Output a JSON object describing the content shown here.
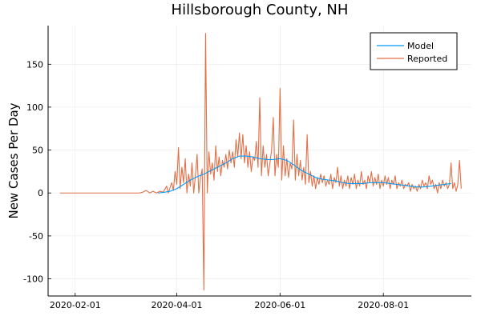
{
  "chart_data": {
    "type": "line",
    "title": "Hillsborough County, NH",
    "xlabel": "",
    "ylabel": "New Cases Per Day",
    "x_axis": "date",
    "x_start": "2020-01-23",
    "x_end": "2020-09-16",
    "xlim": [
      "2020-01-16",
      "2020-09-22"
    ],
    "ylim": [
      -120,
      195
    ],
    "xticks": [
      "2020-02-01",
      "2020-04-01",
      "2020-06-01",
      "2020-08-01"
    ],
    "yticks": [
      150,
      100,
      50,
      0,
      -50,
      -100
    ],
    "ytick_labels": [
      "150",
      "100",
      "50",
      "0",
      "-50",
      "-100"
    ],
    "grid": true,
    "legend": {
      "position": "top-right",
      "entries": [
        "Model",
        "Reported"
      ]
    },
    "series": [
      {
        "name": "Model",
        "color": "#009AFA",
        "points": [
          [
            "2020-03-21",
            0
          ],
          [
            "2020-03-25",
            1
          ],
          [
            "2020-03-28",
            2
          ],
          [
            "2020-04-01",
            5
          ],
          [
            "2020-04-05",
            10
          ],
          [
            "2020-04-09",
            15
          ],
          [
            "2020-04-13",
            19
          ],
          [
            "2020-04-17",
            22
          ],
          [
            "2020-04-22",
            27
          ],
          [
            "2020-04-26",
            31
          ],
          [
            "2020-04-30",
            35
          ],
          [
            "2020-05-04",
            40
          ],
          [
            "2020-05-08",
            43
          ],
          [
            "2020-05-12",
            43
          ],
          [
            "2020-05-16",
            42
          ],
          [
            "2020-05-20",
            40
          ],
          [
            "2020-05-24",
            39
          ],
          [
            "2020-05-28",
            39
          ],
          [
            "2020-06-01",
            40
          ],
          [
            "2020-06-05",
            38
          ],
          [
            "2020-06-09",
            33
          ],
          [
            "2020-06-13",
            27
          ],
          [
            "2020-06-18",
            22
          ],
          [
            "2020-06-22",
            18
          ],
          [
            "2020-06-26",
            16
          ],
          [
            "2020-06-30",
            15
          ],
          [
            "2020-07-04",
            14
          ],
          [
            "2020-07-08",
            12
          ],
          [
            "2020-07-12",
            11
          ],
          [
            "2020-07-16",
            11
          ],
          [
            "2020-07-20",
            11
          ],
          [
            "2020-07-24",
            12
          ],
          [
            "2020-07-28",
            12
          ],
          [
            "2020-08-01",
            12
          ],
          [
            "2020-08-05",
            11
          ],
          [
            "2020-08-09",
            10
          ],
          [
            "2020-08-13",
            9
          ],
          [
            "2020-08-17",
            8
          ],
          [
            "2020-08-21",
            7
          ],
          [
            "2020-08-25",
            7
          ],
          [
            "2020-08-29",
            8
          ],
          [
            "2020-09-02",
            9
          ],
          [
            "2020-09-06",
            10
          ],
          [
            "2020-09-10",
            11
          ]
        ]
      },
      {
        "name": "Reported",
        "color": "#E26F46",
        "points": [
          [
            "2020-01-23",
            0
          ],
          [
            "2020-03-10",
            0
          ],
          [
            "2020-03-12",
            1
          ],
          [
            "2020-03-14",
            3
          ],
          [
            "2020-03-16",
            0
          ],
          [
            "2020-03-18",
            2
          ],
          [
            "2020-03-20",
            0
          ],
          [
            "2020-03-22",
            2
          ],
          [
            "2020-03-24",
            1
          ],
          [
            "2020-03-26",
            8
          ],
          [
            "2020-03-27",
            0
          ],
          [
            "2020-03-29",
            12
          ],
          [
            "2020-03-30",
            3
          ],
          [
            "2020-03-31",
            25
          ],
          [
            "2020-04-01",
            10
          ],
          [
            "2020-04-02",
            53
          ],
          [
            "2020-04-03",
            5
          ],
          [
            "2020-04-04",
            30
          ],
          [
            "2020-04-05",
            12
          ],
          [
            "2020-04-06",
            40
          ],
          [
            "2020-04-07",
            0
          ],
          [
            "2020-04-08",
            22
          ],
          [
            "2020-04-09",
            8
          ],
          [
            "2020-04-10",
            35
          ],
          [
            "2020-04-11",
            0
          ],
          [
            "2020-04-12",
            20
          ],
          [
            "2020-04-13",
            45
          ],
          [
            "2020-04-14",
            0
          ],
          [
            "2020-04-15",
            18
          ],
          [
            "2020-04-16",
            28
          ],
          [
            "2020-04-17",
            -113
          ],
          [
            "2020-04-18",
            186
          ],
          [
            "2020-04-19",
            0
          ],
          [
            "2020-04-20",
            48
          ],
          [
            "2020-04-21",
            22
          ],
          [
            "2020-04-22",
            35
          ],
          [
            "2020-04-23",
            15
          ],
          [
            "2020-04-24",
            55
          ],
          [
            "2020-04-25",
            25
          ],
          [
            "2020-04-26",
            42
          ],
          [
            "2020-04-27",
            20
          ],
          [
            "2020-04-28",
            38
          ],
          [
            "2020-04-29",
            30
          ],
          [
            "2020-04-30",
            45
          ],
          [
            "2020-05-01",
            28
          ],
          [
            "2020-05-02",
            50
          ],
          [
            "2020-05-03",
            35
          ],
          [
            "2020-05-04",
            48
          ],
          [
            "2020-05-05",
            30
          ],
          [
            "2020-05-06",
            62
          ],
          [
            "2020-05-07",
            42
          ],
          [
            "2020-05-08",
            70
          ],
          [
            "2020-05-09",
            40
          ],
          [
            "2020-05-10",
            68
          ],
          [
            "2020-05-11",
            35
          ],
          [
            "2020-05-12",
            55
          ],
          [
            "2020-05-13",
            30
          ],
          [
            "2020-05-14",
            48
          ],
          [
            "2020-05-15",
            25
          ],
          [
            "2020-05-16",
            42
          ],
          [
            "2020-05-17",
            38
          ],
          [
            "2020-05-18",
            60
          ],
          [
            "2020-05-19",
            30
          ],
          [
            "2020-05-20",
            111
          ],
          [
            "2020-05-21",
            20
          ],
          [
            "2020-05-22",
            55
          ],
          [
            "2020-05-23",
            30
          ],
          [
            "2020-05-24",
            45
          ],
          [
            "2020-05-25",
            20
          ],
          [
            "2020-05-26",
            35
          ],
          [
            "2020-05-27",
            50
          ],
          [
            "2020-05-28",
            88
          ],
          [
            "2020-05-29",
            20
          ],
          [
            "2020-05-30",
            45
          ],
          [
            "2020-05-31",
            30
          ],
          [
            "2020-06-01",
            122
          ],
          [
            "2020-06-02",
            15
          ],
          [
            "2020-06-03",
            55
          ],
          [
            "2020-06-04",
            20
          ],
          [
            "2020-06-05",
            40
          ],
          [
            "2020-06-06",
            18
          ],
          [
            "2020-06-07",
            35
          ],
          [
            "2020-06-08",
            28
          ],
          [
            "2020-06-09",
            85
          ],
          [
            "2020-06-10",
            15
          ],
          [
            "2020-06-11",
            45
          ],
          [
            "2020-06-12",
            20
          ],
          [
            "2020-06-13",
            38
          ],
          [
            "2020-06-14",
            15
          ],
          [
            "2020-06-15",
            30
          ],
          [
            "2020-06-16",
            10
          ],
          [
            "2020-06-17",
            68
          ],
          [
            "2020-06-18",
            12
          ],
          [
            "2020-06-19",
            25
          ],
          [
            "2020-06-20",
            8
          ],
          [
            "2020-06-21",
            20
          ],
          [
            "2020-06-22",
            5
          ],
          [
            "2020-06-23",
            18
          ],
          [
            "2020-06-24",
            10
          ],
          [
            "2020-06-25",
            22
          ],
          [
            "2020-06-26",
            12
          ],
          [
            "2020-06-27",
            20
          ],
          [
            "2020-06-28",
            8
          ],
          [
            "2020-06-29",
            15
          ],
          [
            "2020-06-30",
            10
          ],
          [
            "2020-07-01",
            22
          ],
          [
            "2020-07-02",
            5
          ],
          [
            "2020-07-03",
            18
          ],
          [
            "2020-07-04",
            12
          ],
          [
            "2020-07-05",
            30
          ],
          [
            "2020-07-06",
            8
          ],
          [
            "2020-07-07",
            20
          ],
          [
            "2020-07-08",
            5
          ],
          [
            "2020-07-09",
            15
          ],
          [
            "2020-07-10",
            8
          ],
          [
            "2020-07-11",
            20
          ],
          [
            "2020-07-12",
            5
          ],
          [
            "2020-07-13",
            18
          ],
          [
            "2020-07-14",
            10
          ],
          [
            "2020-07-15",
            22
          ],
          [
            "2020-07-16",
            5
          ],
          [
            "2020-07-17",
            15
          ],
          [
            "2020-07-18",
            8
          ],
          [
            "2020-07-19",
            25
          ],
          [
            "2020-07-20",
            10
          ],
          [
            "2020-07-21",
            15
          ],
          [
            "2020-07-22",
            5
          ],
          [
            "2020-07-23",
            20
          ],
          [
            "2020-07-24",
            12
          ],
          [
            "2020-07-25",
            25
          ],
          [
            "2020-07-26",
            8
          ],
          [
            "2020-07-27",
            18
          ],
          [
            "2020-07-28",
            10
          ],
          [
            "2020-07-29",
            22
          ],
          [
            "2020-07-30",
            5
          ],
          [
            "2020-07-31",
            15
          ],
          [
            "2020-08-01",
            8
          ],
          [
            "2020-08-02",
            20
          ],
          [
            "2020-08-03",
            10
          ],
          [
            "2020-08-04",
            18
          ],
          [
            "2020-08-05",
            5
          ],
          [
            "2020-08-06",
            15
          ],
          [
            "2020-08-07",
            10
          ],
          [
            "2020-08-08",
            20
          ],
          [
            "2020-08-09",
            5
          ],
          [
            "2020-08-10",
            12
          ],
          [
            "2020-08-11",
            8
          ],
          [
            "2020-08-12",
            15
          ],
          [
            "2020-08-13",
            5
          ],
          [
            "2020-08-14",
            10
          ],
          [
            "2020-08-15",
            8
          ],
          [
            "2020-08-16",
            12
          ],
          [
            "2020-08-17",
            2
          ],
          [
            "2020-08-18",
            10
          ],
          [
            "2020-08-19",
            5
          ],
          [
            "2020-08-20",
            8
          ],
          [
            "2020-08-21",
            2
          ],
          [
            "2020-08-22",
            10
          ],
          [
            "2020-08-23",
            5
          ],
          [
            "2020-08-24",
            15
          ],
          [
            "2020-08-25",
            8
          ],
          [
            "2020-08-26",
            12
          ],
          [
            "2020-08-27",
            5
          ],
          [
            "2020-08-28",
            20
          ],
          [
            "2020-08-29",
            10
          ],
          [
            "2020-08-30",
            15
          ],
          [
            "2020-08-31",
            5
          ],
          [
            "2020-09-01",
            10
          ],
          [
            "2020-09-02",
            0
          ],
          [
            "2020-09-03",
            12
          ],
          [
            "2020-09-04",
            5
          ],
          [
            "2020-09-05",
            15
          ],
          [
            "2020-09-06",
            8
          ],
          [
            "2020-09-07",
            12
          ],
          [
            "2020-09-08",
            5
          ],
          [
            "2020-09-09",
            10
          ],
          [
            "2020-09-10",
            35
          ],
          [
            "2020-09-11",
            5
          ],
          [
            "2020-09-12",
            12
          ],
          [
            "2020-09-13",
            2
          ],
          [
            "2020-09-14",
            10
          ],
          [
            "2020-09-15",
            38
          ],
          [
            "2020-09-16",
            5
          ]
        ]
      }
    ]
  }
}
